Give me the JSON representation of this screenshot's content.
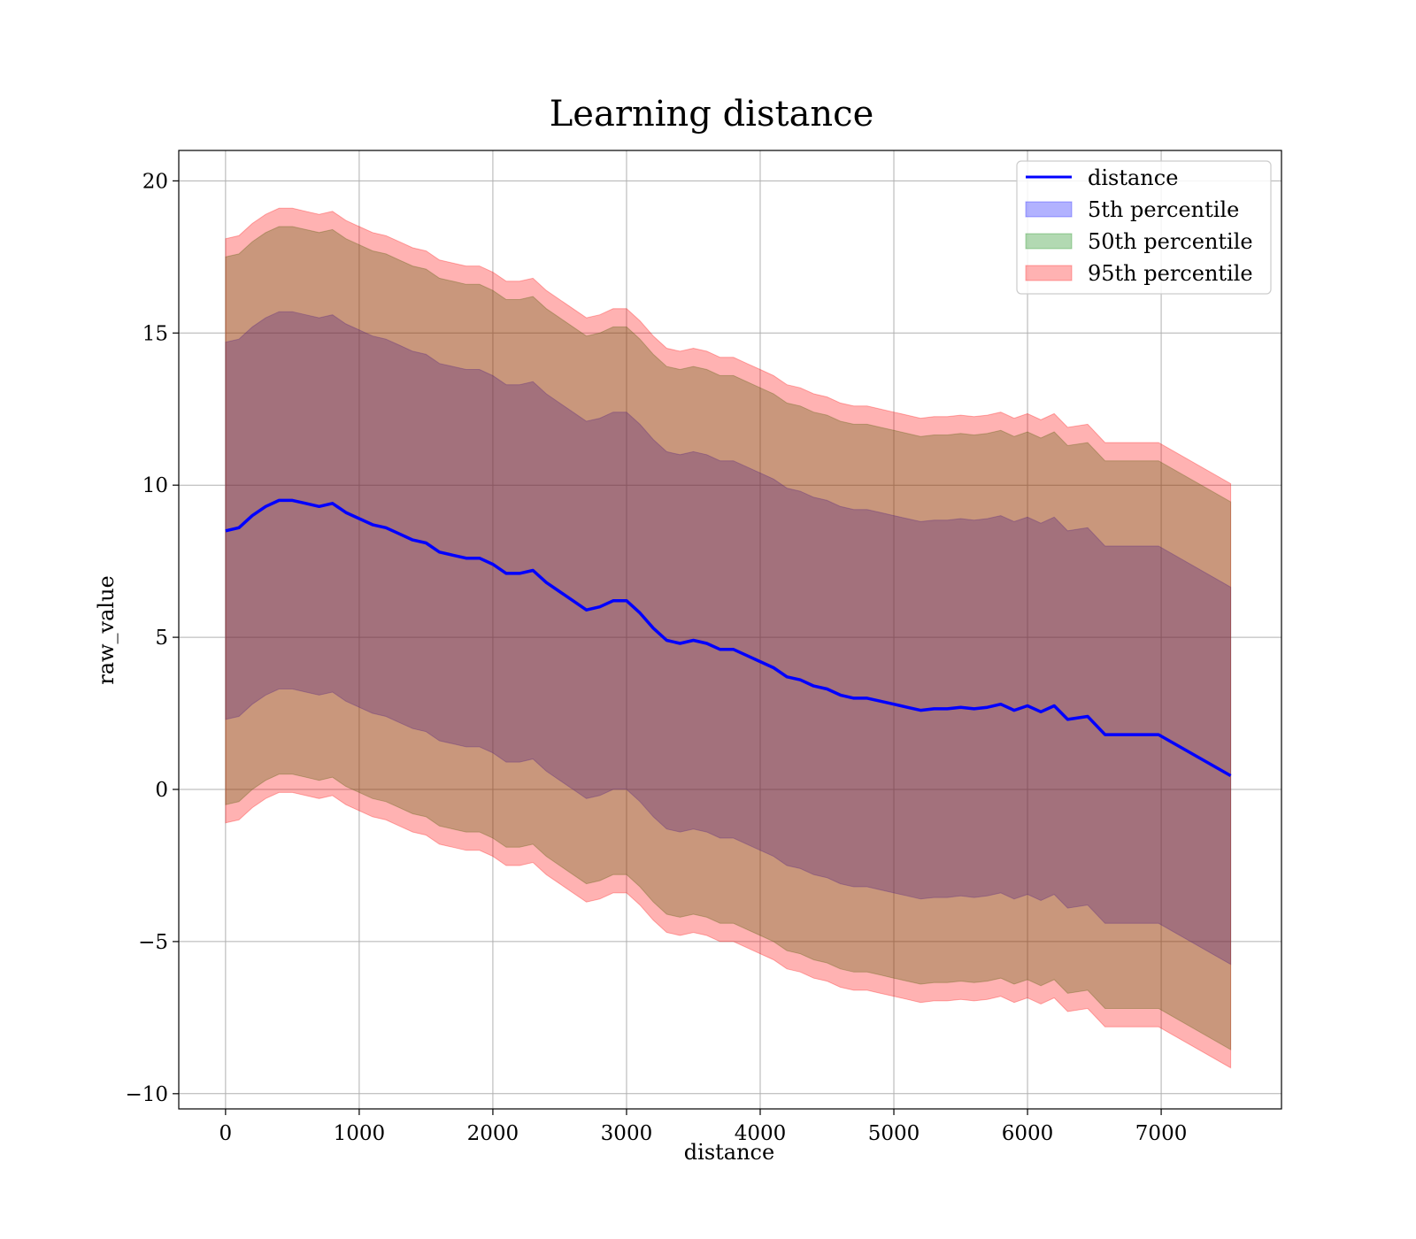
{
  "chart_data": {
    "type": "line",
    "title": "Learning distance",
    "xlabel": "distance",
    "ylabel": "raw_value",
    "xlim": [
      -350,
      7900
    ],
    "ylim": [
      -10.5,
      21
    ],
    "xticks": [
      0,
      1000,
      2000,
      3000,
      4000,
      5000,
      6000,
      7000
    ],
    "yticks": [
      -10,
      -5,
      0,
      5,
      10,
      15,
      20
    ],
    "xtick_labels": [
      "0",
      "1000",
      "2000",
      "3000",
      "4000",
      "5000",
      "6000",
      "7000"
    ],
    "ytick_labels": [
      "−10",
      "−5",
      "0",
      "5",
      "10",
      "15",
      "20"
    ],
    "grid": true,
    "legend_position": "upper right",
    "series": [
      {
        "name": "distance",
        "kind": "line",
        "color": "#0000ff",
        "x": [
          0,
          100,
          200,
          300,
          400,
          500,
          600,
          700,
          800,
          900,
          1000,
          1100,
          1200,
          1300,
          1400,
          1500,
          1600,
          1700,
          1800,
          1900,
          2000,
          2100,
          2200,
          2300,
          2400,
          2500,
          2600,
          2700,
          2800,
          2900,
          3000,
          3100,
          3200,
          3300,
          3400,
          3500,
          3600,
          3700,
          3800,
          3900,
          4000,
          4100,
          4200,
          4300,
          4400,
          4500,
          4600,
          4700,
          4800,
          4900,
          5000,
          5100,
          5200,
          5300,
          5400,
          5500,
          5600,
          5700,
          5800,
          5900,
          6000,
          6100,
          6200,
          6300,
          6450,
          6580,
          6980,
          7520
        ],
        "y": [
          8.5,
          8.6,
          9.0,
          9.3,
          9.5,
          9.5,
          9.4,
          9.3,
          9.4,
          9.1,
          8.9,
          8.7,
          8.6,
          8.4,
          8.2,
          8.1,
          7.8,
          7.7,
          7.6,
          7.6,
          7.4,
          7.1,
          7.1,
          7.2,
          6.8,
          6.5,
          6.2,
          5.9,
          6.0,
          6.2,
          6.2,
          5.8,
          5.3,
          4.9,
          4.8,
          4.9,
          4.8,
          4.6,
          4.6,
          4.4,
          4.2,
          4.0,
          3.7,
          3.6,
          3.4,
          3.3,
          3.1,
          3.0,
          3.0,
          2.9,
          2.8,
          2.7,
          2.6,
          2.65,
          2.65,
          2.7,
          2.65,
          2.7,
          2.8,
          2.6,
          2.75,
          2.55,
          2.75,
          2.3,
          2.4,
          1.8,
          1.8,
          0.45
        ]
      },
      {
        "name": "5th percentile",
        "kind": "band",
        "color": "#0000ff",
        "upper_offset": 6.2,
        "lower_offset": -6.2
      },
      {
        "name": "50th percentile",
        "kind": "band",
        "color": "#008000",
        "upper_offset": 9.0,
        "lower_offset": -9.0
      },
      {
        "name": "95th percentile",
        "kind": "band",
        "color": "#ff0000",
        "upper_offset": 9.6,
        "lower_offset": -9.6
      }
    ]
  }
}
